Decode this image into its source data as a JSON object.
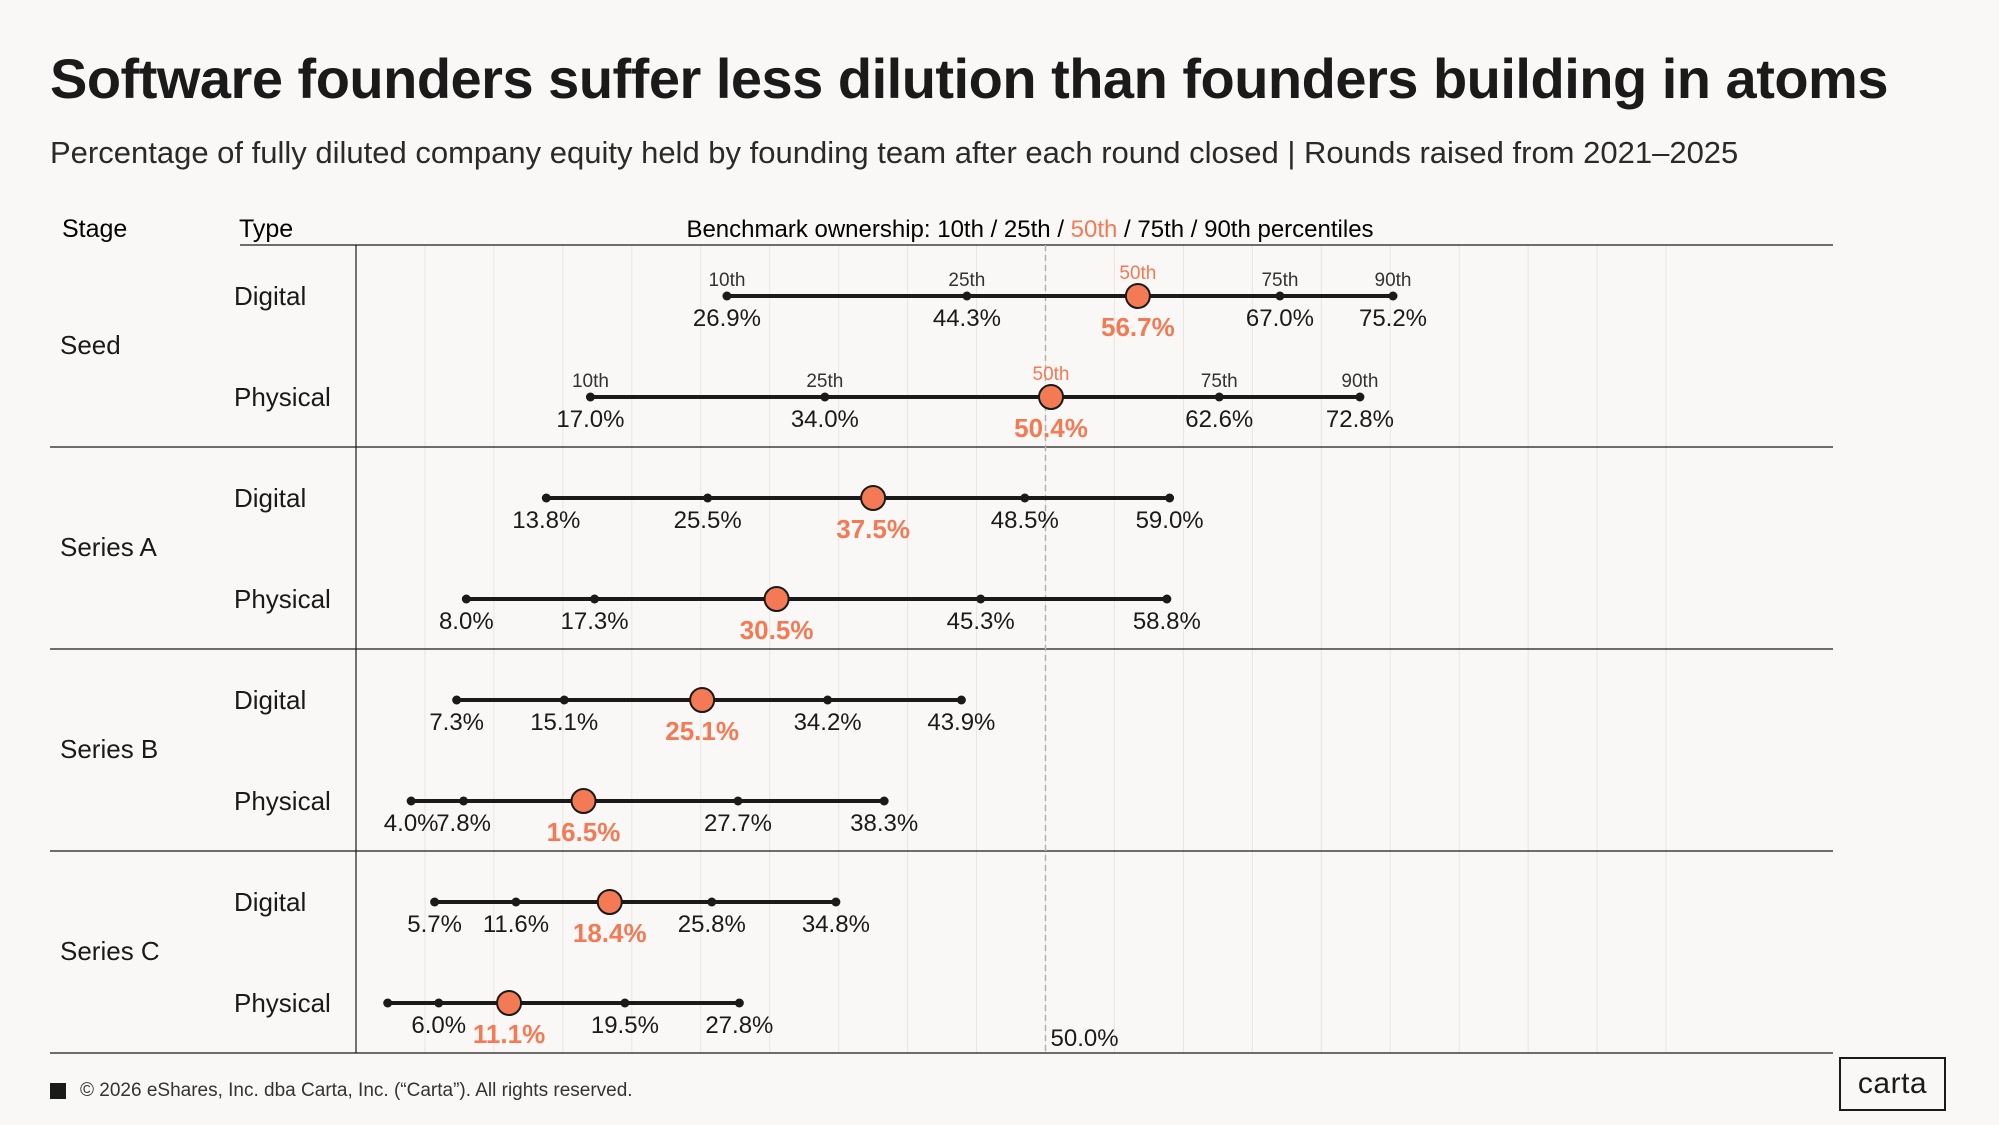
{
  "title": "Software founders suffer less dilution than founders building in atoms",
  "subtitle": "Percentage of fully diluted company equity held by founding team after each round closed | Rounds raised from 2021–2025",
  "headers": {
    "stage": "Stage",
    "type": "Type",
    "benchmark_prefix": "Benchmark ownership: 10th / 25th / ",
    "benchmark_median": "50th",
    "benchmark_suffix": " / 75th / 90th percentiles"
  },
  "footer": {
    "copyright": "© 2026 eShares, Inc. dba Carta, Inc. (“Carta”). All rights reserved."
  },
  "logo": {
    "text": "carta"
  },
  "colors": {
    "accent": "#F47A55",
    "line": "#1a1a1a",
    "grid": "#e9e5e1",
    "ref_line": "#b5b0ab"
  },
  "chart_data": {
    "type": "dot_range",
    "title": "Software founders suffer less dilution than founders building in atoms",
    "xlabel": "Percentage of fully diluted company equity held by founding team",
    "xlim": [
      0,
      100
    ],
    "percentile_labels": [
      "10th",
      "25th",
      "50th",
      "75th",
      "90th"
    ],
    "reference_line": {
      "value": 50.0,
      "label": "50.0%"
    },
    "groups": [
      {
        "stage": "Seed",
        "rows": [
          {
            "type": "Digital",
            "values": [
              26.9,
              44.3,
              56.7,
              67.0,
              75.2
            ],
            "labels": [
              "26.9%",
              "44.3%",
              "56.7%",
              "67.0%",
              "75.2%"
            ],
            "show_percentiles": true
          },
          {
            "type": "Physical",
            "values": [
              17.0,
              34.0,
              50.4,
              62.6,
              72.8
            ],
            "labels": [
              "17.0%",
              "34.0%",
              "50.4%",
              "62.6%",
              "72.8%"
            ],
            "show_percentiles": true
          }
        ]
      },
      {
        "stage": "Series A",
        "rows": [
          {
            "type": "Digital",
            "values": [
              13.8,
              25.5,
              37.5,
              48.5,
              59.0
            ],
            "labels": [
              "13.8%",
              "25.5%",
              "37.5%",
              "48.5%",
              "59.0%"
            ],
            "show_percentiles": false
          },
          {
            "type": "Physical",
            "values": [
              8.0,
              17.3,
              30.5,
              45.3,
              58.8
            ],
            "labels": [
              "8.0%",
              "17.3%",
              "30.5%",
              "45.3%",
              "58.8%"
            ],
            "show_percentiles": false
          }
        ]
      },
      {
        "stage": "Series B",
        "rows": [
          {
            "type": "Digital",
            "values": [
              7.3,
              15.1,
              25.1,
              34.2,
              43.9
            ],
            "labels": [
              "7.3%",
              "15.1%",
              "25.1%",
              "34.2%",
              "43.9%"
            ],
            "show_percentiles": false
          },
          {
            "type": "Physical",
            "values": [
              4.0,
              7.8,
              16.5,
              27.7,
              38.3
            ],
            "labels": [
              "4.0%",
              "7.8%",
              "16.5%",
              "27.7%",
              "38.3%"
            ],
            "show_percentiles": false
          }
        ]
      },
      {
        "stage": "Series C",
        "rows": [
          {
            "type": "Digital",
            "values": [
              5.7,
              11.6,
              18.4,
              25.8,
              34.8
            ],
            "labels": [
              "5.7%",
              "11.6%",
              "18.4%",
              "25.8%",
              "34.8%"
            ],
            "show_percentiles": false
          },
          {
            "type": "Physical",
            "values": [
              2.3,
              6.0,
              11.1,
              19.5,
              27.8
            ],
            "labels": [
              "",
              "6.0%",
              "11.1%",
              "19.5%",
              "27.8%"
            ],
            "show_percentiles": false
          }
        ]
      }
    ]
  }
}
